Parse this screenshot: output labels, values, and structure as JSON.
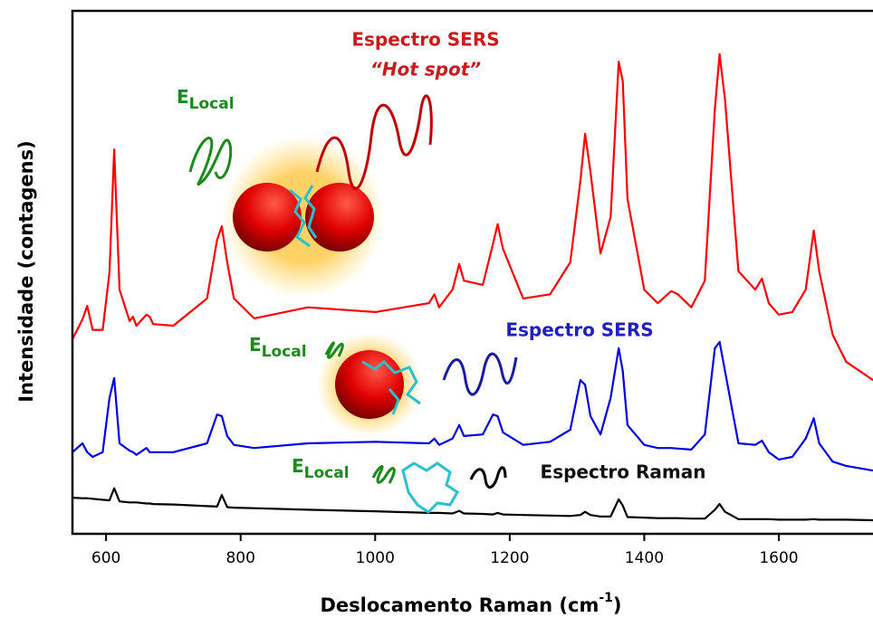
{
  "chart_data": {
    "type": "line",
    "x_label": {
      "text": "Deslocamento Raman (cm",
      "sup": "-1",
      "end": ")"
    },
    "y_label": "Intensidade (contagens)",
    "x": [
      550,
      565,
      572,
      580,
      595,
      605,
      612,
      620,
      635,
      640,
      645,
      660,
      665,
      670,
      700,
      750,
      765,
      772,
      780,
      790,
      820,
      900,
      1000,
      1080,
      1088,
      1095,
      1115,
      1125,
      1132,
      1160,
      1175,
      1182,
      1190,
      1220,
      1260,
      1290,
      1305,
      1312,
      1320,
      1335,
      1350,
      1362,
      1368,
      1375,
      1400,
      1420,
      1440,
      1450,
      1470,
      1490,
      1505,
      1512,
      1520,
      1540,
      1565,
      1575,
      1585,
      1600,
      1620,
      1640,
      1652,
      1660,
      1680,
      1700,
      1740
    ],
    "series": [
      {
        "name": "Espectro SERS",
        "subtitle": "“Hot spot”",
        "color": "#ff0000",
        "values": [
          37.2,
          41,
          43.6,
          39,
          39,
          50,
          73.5,
          46.7,
          40.7,
          41.5,
          39.8,
          41.9,
          41.5,
          40.1,
          39.8,
          45,
          56.2,
          58.8,
          51.9,
          45,
          41.2,
          43.3,
          42.4,
          44.1,
          45.8,
          43.3,
          46.7,
          51.6,
          48.4,
          47.6,
          55.4,
          59.2,
          54.5,
          45,
          45.8,
          51.9,
          67.5,
          76.5,
          69.2,
          53.6,
          60.6,
          90.3,
          86.5,
          64,
          46.7,
          44.1,
          46.4,
          45.8,
          43.3,
          48.4,
          81.3,
          91.7,
          83,
          50.2,
          46.7,
          48.8,
          44.1,
          41.9,
          42.4,
          46.7,
          58,
          50.2,
          38.1,
          32.9,
          29.4
        ]
      },
      {
        "name": "Espectro SERS",
        "color": "#0000e0",
        "values": [
          15.6,
          17.3,
          15.6,
          14.7,
          15.6,
          26,
          29.8,
          17.3,
          15.9,
          15.6,
          15.1,
          16.4,
          15.6,
          15.6,
          15.6,
          17.3,
          22.8,
          22.5,
          18.7,
          17,
          16.4,
          17.3,
          17.6,
          17.3,
          18.2,
          17,
          18.2,
          20.8,
          18.7,
          19,
          22.8,
          22.5,
          19.4,
          17,
          17.6,
          19.9,
          29.4,
          28.5,
          22.5,
          19,
          26,
          35.5,
          31.1,
          20.8,
          17,
          16.4,
          16.4,
          16.3,
          16.1,
          19,
          35.5,
          36.7,
          31.1,
          17.3,
          17,
          17.8,
          15.6,
          14.2,
          14.7,
          18.2,
          22.1,
          17.3,
          13.8,
          13,
          12.1
        ]
      },
      {
        "name": "Espectro Raman",
        "color": "#000000",
        "values": [
          6.9,
          6.8,
          6.8,
          6.7,
          6.5,
          6.4,
          8.7,
          6.2,
          6,
          6,
          6,
          5.8,
          5.8,
          5.7,
          5.6,
          5.3,
          5.2,
          7.4,
          5.1,
          5,
          4.9,
          4.6,
          4.3,
          4,
          4,
          4,
          3.9,
          4.4,
          3.9,
          3.8,
          3.7,
          4,
          3.7,
          3.6,
          3.5,
          3.4,
          3.6,
          4.2,
          3.6,
          3.3,
          3.3,
          6.6,
          5.4,
          3.2,
          3.1,
          3,
          3,
          3,
          2.9,
          2.9,
          4.6,
          5.7,
          4.2,
          2.8,
          2.8,
          2.8,
          2.8,
          2.7,
          2.7,
          2.7,
          2.8,
          2.7,
          2.7,
          2.7,
          2.6
        ]
      }
    ],
    "e_local": {
      "text": "E",
      "sub": "Local"
    },
    "xlim": [
      550,
      1740
    ],
    "ylim": [
      0,
      100
    ],
    "xticks": [
      600,
      800,
      1000,
      1200,
      1400,
      1600
    ]
  }
}
